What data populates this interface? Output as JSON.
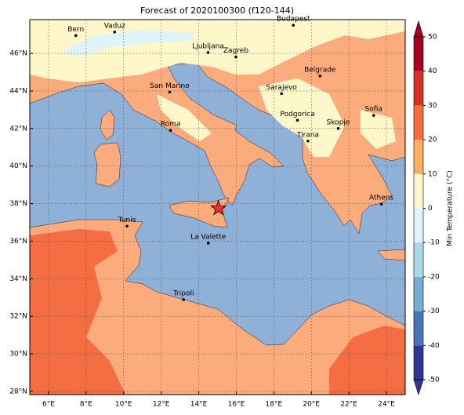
{
  "title": "Forecast of 2020100300 (f120-144)",
  "map": {
    "lon_range": [
      5,
      25
    ],
    "lat_range": [
      27.83,
      47.8
    ],
    "lon_ticks": [
      {
        "value": 6,
        "label": "6°E"
      },
      {
        "value": 8,
        "label": "8°E"
      },
      {
        "value": 10,
        "label": "10°E"
      },
      {
        "value": 12,
        "label": "12°E"
      },
      {
        "value": 14,
        "label": "14°E"
      },
      {
        "value": 16,
        "label": "16°E"
      },
      {
        "value": 18,
        "label": "18°E"
      },
      {
        "value": 20,
        "label": "20°E"
      },
      {
        "value": 22,
        "label": "22°E"
      },
      {
        "value": 24,
        "label": "24°E"
      }
    ],
    "lat_ticks": [
      {
        "value": 28,
        "label": "28°N"
      },
      {
        "value": 30,
        "label": "30°N"
      },
      {
        "value": 32,
        "label": "32°N"
      },
      {
        "value": 34,
        "label": "34°N"
      },
      {
        "value": 36,
        "label": "36°N"
      },
      {
        "value": 38,
        "label": "38°N"
      },
      {
        "value": 40,
        "label": "40°N"
      },
      {
        "value": 42,
        "label": "42°N"
      },
      {
        "value": 44,
        "label": "44°N"
      },
      {
        "value": 46,
        "label": "46°N"
      }
    ],
    "cities": [
      {
        "name": "Bern",
        "lon": 7.45,
        "lat": 46.95
      },
      {
        "name": "Vaduz",
        "lon": 9.52,
        "lat": 47.14
      },
      {
        "name": "Budapest",
        "lon": 19.04,
        "lat": 47.5
      },
      {
        "name": "Ljubljana",
        "lon": 14.5,
        "lat": 46.05
      },
      {
        "name": "Zagreb",
        "lon": 15.98,
        "lat": 45.81
      },
      {
        "name": "Belgrade",
        "lon": 20.46,
        "lat": 44.8
      },
      {
        "name": "San Marino",
        "lon": 12.45,
        "lat": 43.94
      },
      {
        "name": "Sarajevo",
        "lon": 18.41,
        "lat": 43.86
      },
      {
        "name": "Sofia",
        "lon": 23.32,
        "lat": 42.7
      },
      {
        "name": "Podgorica",
        "lon": 19.26,
        "lat": 42.44
      },
      {
        "name": "Skopje",
        "lon": 21.43,
        "lat": 42.0
      },
      {
        "name": "Roma",
        "lon": 12.5,
        "lat": 41.9
      },
      {
        "name": "Tirana",
        "lon": 19.82,
        "lat": 41.33
      },
      {
        "name": "Athens",
        "lon": 23.73,
        "lat": 37.98
      },
      {
        "name": "Tunis",
        "lon": 10.18,
        "lat": 36.8
      },
      {
        "name": "La Valette",
        "lon": 14.51,
        "lat": 35.9
      },
      {
        "name": "Tripoli",
        "lon": 13.19,
        "lat": 32.89
      }
    ],
    "marker": {
      "lon": 15.05,
      "lat": 37.75,
      "color": "#ff2a2a"
    }
  },
  "colorbar": {
    "label": "Min Temperature (°C)",
    "ticks": [
      -50,
      -40,
      -30,
      -20,
      -10,
      0,
      10,
      20,
      30,
      40,
      50
    ],
    "colors": [
      "#313695",
      "#4575b4",
      "#74add1",
      "#abd9e9",
      "#e0f3f8",
      "#fef7c9",
      "#fdae61",
      "#f46d43",
      "#d73027",
      "#a50026"
    ]
  }
}
